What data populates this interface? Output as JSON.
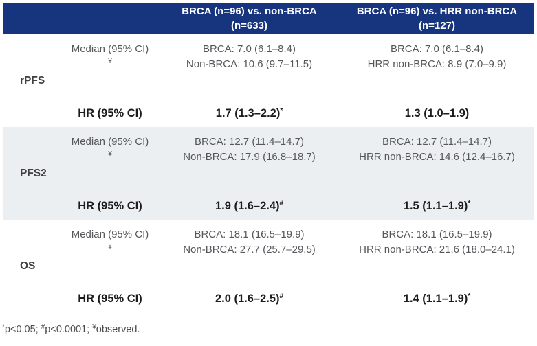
{
  "colors": {
    "header_bg": "#17357e",
    "header_text": "#ffffff",
    "shaded_band_bg": "#eceff2",
    "muted_text": "#55575b",
    "strong_text": "#1c1c1c"
  },
  "header": {
    "columns": [
      "BRCA (n=96) vs. non-BRCA (n=633)",
      "BRCA (n=96) vs. HRR non-BRCA (n=127)"
    ]
  },
  "row_labels": {
    "median": "Median (95% CI)",
    "median_sup": "¥",
    "hr": "HR (95% CI)"
  },
  "groups": [
    {
      "endpoint": "rPFS",
      "median_col1": [
        "BRCA: 7.0 (6.1–8.4)",
        "Non-BRCA: 10.6 (9.7–11.5)"
      ],
      "median_col2": [
        "BRCA: 7.0 (6.1–8.4)",
        "HRR non-BRCA: 8.9 (7.0–9.9)"
      ],
      "hr_col1": {
        "value": "1.7 (1.3–2.2)",
        "sup": "*"
      },
      "hr_col2": {
        "value": "1.3 (1.0–1.9)",
        "sup": ""
      }
    },
    {
      "endpoint": "PFS2",
      "median_col1": [
        "BRCA: 12.7 (11.4–14.7)",
        "Non-BRCA: 17.9 (16.8–18.7)"
      ],
      "median_col2": [
        "BRCA: 12.7 (11.4–14.7)",
        "HRR non-BRCA: 14.6 (12.4–16.7)"
      ],
      "hr_col1": {
        "value": "1.9 (1.6–2.4)",
        "sup": "#"
      },
      "hr_col2": {
        "value": "1.5 (1.1–1.9)",
        "sup": "*"
      }
    },
    {
      "endpoint": "OS",
      "median_col1": [
        "BRCA: 18.1 (16.5–19.9)",
        "Non-BRCA: 27.7 (25.7–29.5)"
      ],
      "median_col2": [
        "BRCA: 18.1 (16.5–19.9)",
        "HRR non-BRCA: 21.6 (18.0–24.1)"
      ],
      "hr_col1": {
        "value": "2.0 (1.6–2.5)",
        "sup": "#"
      },
      "hr_col2": {
        "value": "1.4 (1.1–1.9)",
        "sup": "*"
      }
    }
  ],
  "footnote": {
    "segments": [
      {
        "sup": "*",
        "text": "p<0.05; "
      },
      {
        "sup": "#",
        "text": "p<0.0001; "
      },
      {
        "sup": "¥",
        "text": "observed."
      }
    ]
  }
}
